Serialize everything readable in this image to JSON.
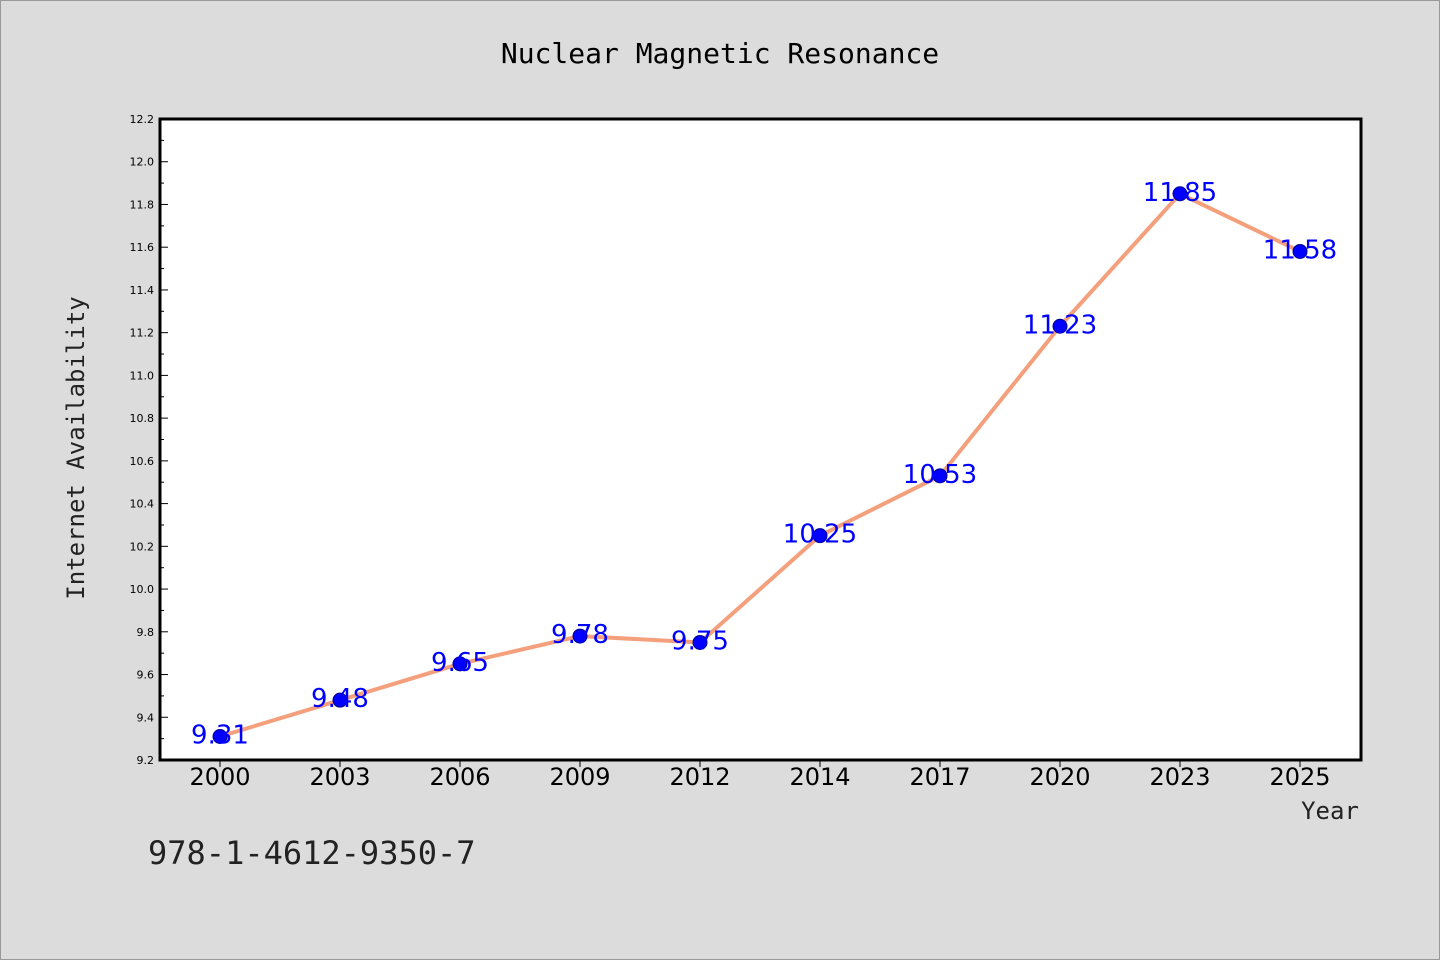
{
  "chart_data": {
    "type": "line",
    "title": "Nuclear Magnetic Resonance",
    "xlabel": "Year",
    "ylabel": "Internet Availability",
    "categories": [
      "2000",
      "2003",
      "2006",
      "2009",
      "2012",
      "2014",
      "2017",
      "2020",
      "2023",
      "2025"
    ],
    "values": [
      9.31,
      9.48,
      9.65,
      9.78,
      9.75,
      10.25,
      10.53,
      11.23,
      11.85,
      11.58
    ],
    "data_labels": [
      "9.31",
      "9.48",
      "9.65",
      "9.78",
      "9.75",
      "10.25",
      "10.53",
      "11.23",
      "11.85",
      "11.58"
    ],
    "ylim": [
      9.2,
      12.2
    ],
    "yticks": [
      "9.2",
      "9.4",
      "9.6",
      "9.8",
      "10.0",
      "10.2",
      "10.4",
      "10.6",
      "10.8",
      "11.0",
      "11.2",
      "11.4",
      "11.6",
      "11.8",
      "12.0",
      "12.2"
    ],
    "grid": false,
    "line_color": "#f4a07c",
    "marker_color": "#0000ff",
    "label_color": "#0000ff"
  },
  "caption": "978-1-4612-9350-7",
  "colors": {
    "background": "#dcdcdc",
    "plot_background": "#ffffff"
  }
}
